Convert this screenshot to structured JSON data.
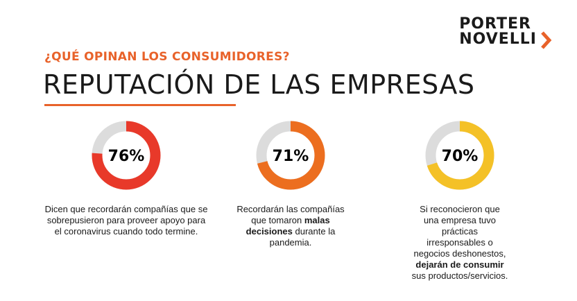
{
  "logo": {
    "line1": "PORTER",
    "line2": "NOVELLI"
  },
  "header": {
    "kicker": "¿QUÉ OPINAN LOS CONSUMIDORES?",
    "title": "REPUTACIÓN DE LAS EMPRESAS"
  },
  "colors": {
    "accent": "#e8622a",
    "track": "#dcdcdc",
    "red": "#e8392a",
    "orange": "#ec6e1f",
    "yellow": "#f4c127"
  },
  "chart_data": [
    {
      "type": "pie",
      "label": "76%",
      "value": 76,
      "color": "#e8392a",
      "description": {
        "before": "Dicen que recordarán compañías que se sobrepusieron para proveer apoyo para el coronavirus cuando todo termine.",
        "bold": "",
        "after": "",
        "bold2": "",
        "after2": ""
      }
    },
    {
      "type": "pie",
      "label": "71%",
      "value": 71,
      "color": "#ec6e1f",
      "description": {
        "before": "Recordarán las compañías que tomaron ",
        "bold": "malas decisiones",
        "after": " durante la pandemia.",
        "bold2": "",
        "after2": ""
      }
    },
    {
      "type": "pie",
      "label": "70%",
      "value": 70,
      "color": "#f4c127",
      "description": {
        "before": "Si reconocieron que una empresa tuvo prácticas irresponsables o negocios deshonestos, ",
        "bold": "dejarán de consumir",
        "after": " sus productos/servicios.",
        "bold2": "",
        "after2": ""
      }
    }
  ]
}
